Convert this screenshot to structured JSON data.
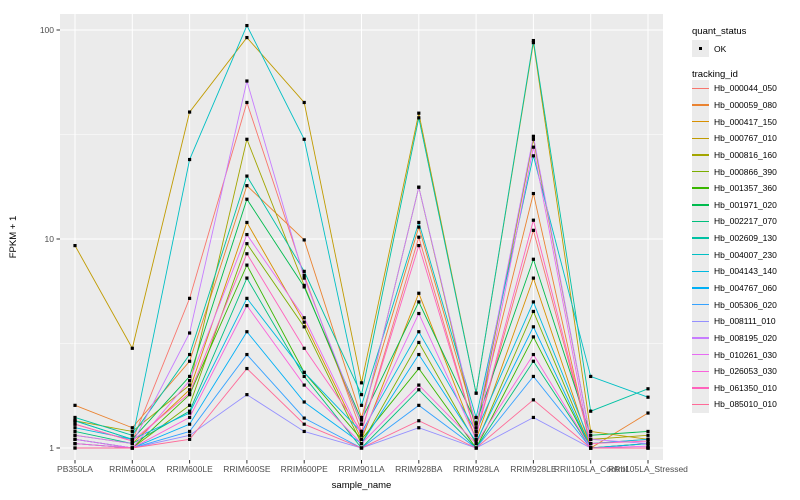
{
  "colors": {
    "panel_bg": "#EBEBEB",
    "grid": "#FFFFFF",
    "axis_text": "#4D4D4D",
    "tick_mark": "#333333",
    "marker": "#000000",
    "background": "#FFFFFF",
    "legend_key_bg": "#EBEBEB"
  },
  "axes": {
    "x_title": "sample_name",
    "y_title": "FPKM + 1",
    "y_tick_labels": [
      "1",
      "10",
      "100"
    ]
  },
  "legend": {
    "quant_status": {
      "title": "quant_status",
      "items": [
        {
          "label": "OK",
          "marker": "black-point"
        }
      ]
    },
    "tracking": {
      "title": "tracking_id"
    }
  },
  "chart_data": {
    "type": "line",
    "title": "",
    "xlabel": "sample_name",
    "ylabel": "FPKM + 1",
    "y_scale": "log10",
    "y_ticks": [
      1,
      10,
      100
    ],
    "ylim": [
      0.88,
      119
    ],
    "grid": true,
    "legend_position": "right",
    "point_marker": "small-black-square",
    "quant_status_all_points": "OK",
    "categories": [
      "PB350LA",
      "RRIM600LA",
      "RRIM600LE",
      "RRIM600SE",
      "RRIM600PE",
      "RRIM901LA",
      "RRIM928BA",
      "RRIM928LA",
      "RRIM928LE",
      "RRII105LA_Control",
      "RRII105LA_Stressed"
    ],
    "series": [
      {
        "name": "Hb_000044_050",
        "color": "#F8766D",
        "values": [
          1.3,
          1.08,
          5.2,
          45,
          6.7,
          1.2,
          10.2,
          1.15,
          11.0,
          1.05,
          1.1
        ]
      },
      {
        "name": "Hb_000059_080",
        "color": "#EA8331",
        "values": [
          1.6,
          1.25,
          2.6,
          18,
          9.9,
          1.4,
          11.4,
          1.3,
          16.5,
          1.0,
          1.47
        ]
      },
      {
        "name": "Hb_000417_150",
        "color": "#D89000",
        "values": [
          1.15,
          1.05,
          1.9,
          12,
          4.0,
          1.1,
          5.5,
          1.1,
          6.5,
          1.0,
          1.05
        ]
      },
      {
        "name": "Hb_000767_010",
        "color": "#C09B00",
        "values": [
          9.3,
          3.0,
          40.5,
          92,
          45.0,
          2.05,
          40.0,
          1.83,
          87.0,
          1.2,
          1.1
        ]
      },
      {
        "name": "Hb_000816_160",
        "color": "#A3A500",
        "values": [
          1.35,
          1.2,
          2.0,
          30,
          6.0,
          1.3,
          17.7,
          1.2,
          30.0,
          1.1,
          1.15
        ]
      },
      {
        "name": "Hb_000866_390",
        "color": "#7CAE00",
        "values": [
          1.1,
          1.0,
          1.6,
          9.5,
          3.8,
          1.05,
          3.2,
          1.05,
          4.5,
          1.0,
          1.0
        ]
      },
      {
        "name": "Hb_001357_360",
        "color": "#39B600",
        "values": [
          1.05,
          1.0,
          1.8,
          7.5,
          2.3,
          1.1,
          2.4,
          1.0,
          3.4,
          1.0,
          1.05
        ]
      },
      {
        "name": "Hb_001971_020",
        "color": "#00BB4E",
        "values": [
          1.35,
          1.1,
          2.2,
          15.5,
          5.9,
          1.36,
          5.0,
          1.32,
          8.0,
          1.15,
          1.2
        ]
      },
      {
        "name": "Hb_002217_070",
        "color": "#00BF7D",
        "values": [
          1.2,
          1.05,
          1.5,
          6.5,
          2.2,
          1.0,
          1.9,
          1.0,
          2.6,
          1.0,
          1.0
        ]
      },
      {
        "name": "Hb_002609_130",
        "color": "#00C1A3",
        "values": [
          1.4,
          1.15,
          2.8,
          20,
          7.0,
          1.8,
          38.0,
          1.83,
          89.0,
          1.5,
          1.92
        ]
      },
      {
        "name": "Hb_004007_230",
        "color": "#00BFC4",
        "values": [
          1.35,
          1.1,
          24.0,
          105,
          30.0,
          1.6,
          12.0,
          1.4,
          25.0,
          2.2,
          1.75
        ]
      },
      {
        "name": "Hb_004143_140",
        "color": "#00BAE0",
        "values": [
          1.25,
          1.1,
          1.47,
          5.2,
          2.3,
          1.19,
          3.6,
          1.2,
          5.0,
          1.05,
          1.1
        ]
      },
      {
        "name": "Hb_004767_060",
        "color": "#00B0F6",
        "values": [
          1.1,
          1.0,
          1.3,
          3.6,
          1.66,
          1.05,
          2.8,
          1.07,
          3.8,
          1.0,
          1.05
        ]
      },
      {
        "name": "Hb_005306_020",
        "color": "#35A2FF",
        "values": [
          1.05,
          1.0,
          1.2,
          2.8,
          1.39,
          1.0,
          1.6,
          1.0,
          2.2,
          1.0,
          1.0
        ]
      },
      {
        "name": "Hb_008111_010",
        "color": "#9590FF",
        "values": [
          1.0,
          1.0,
          1.15,
          1.8,
          1.2,
          1.0,
          1.25,
          1.0,
          1.4,
          1.0,
          1.0
        ]
      },
      {
        "name": "Hb_008195_020",
        "color": "#C77CFF",
        "values": [
          1.15,
          1.05,
          3.55,
          57,
          6.5,
          1.3,
          17.7,
          1.25,
          31.0,
          1.1,
          1.05
        ]
      },
      {
        "name": "Hb_010261_030",
        "color": "#E76BF3",
        "values": [
          1.1,
          1.0,
          2.1,
          10.5,
          4.2,
          1.15,
          4.4,
          1.1,
          27.5,
          1.0,
          1.02
        ]
      },
      {
        "name": "Hb_026053_030",
        "color": "#FA62DB",
        "values": [
          1.05,
          1.0,
          1.4,
          4.8,
          2.0,
          1.05,
          2.0,
          1.05,
          2.8,
          1.0,
          1.0
        ]
      },
      {
        "name": "Hb_061350_010",
        "color": "#FF62BC",
        "values": [
          1.3,
          1.08,
          1.83,
          8.5,
          3.0,
          1.2,
          9.3,
          1.15,
          12.3,
          1.05,
          1.08
        ]
      },
      {
        "name": "Hb_085010_010",
        "color": "#FF6A98",
        "values": [
          1.0,
          1.0,
          1.1,
          2.4,
          1.3,
          1.0,
          1.35,
          1.0,
          1.7,
          1.0,
          1.0
        ]
      }
    ]
  }
}
